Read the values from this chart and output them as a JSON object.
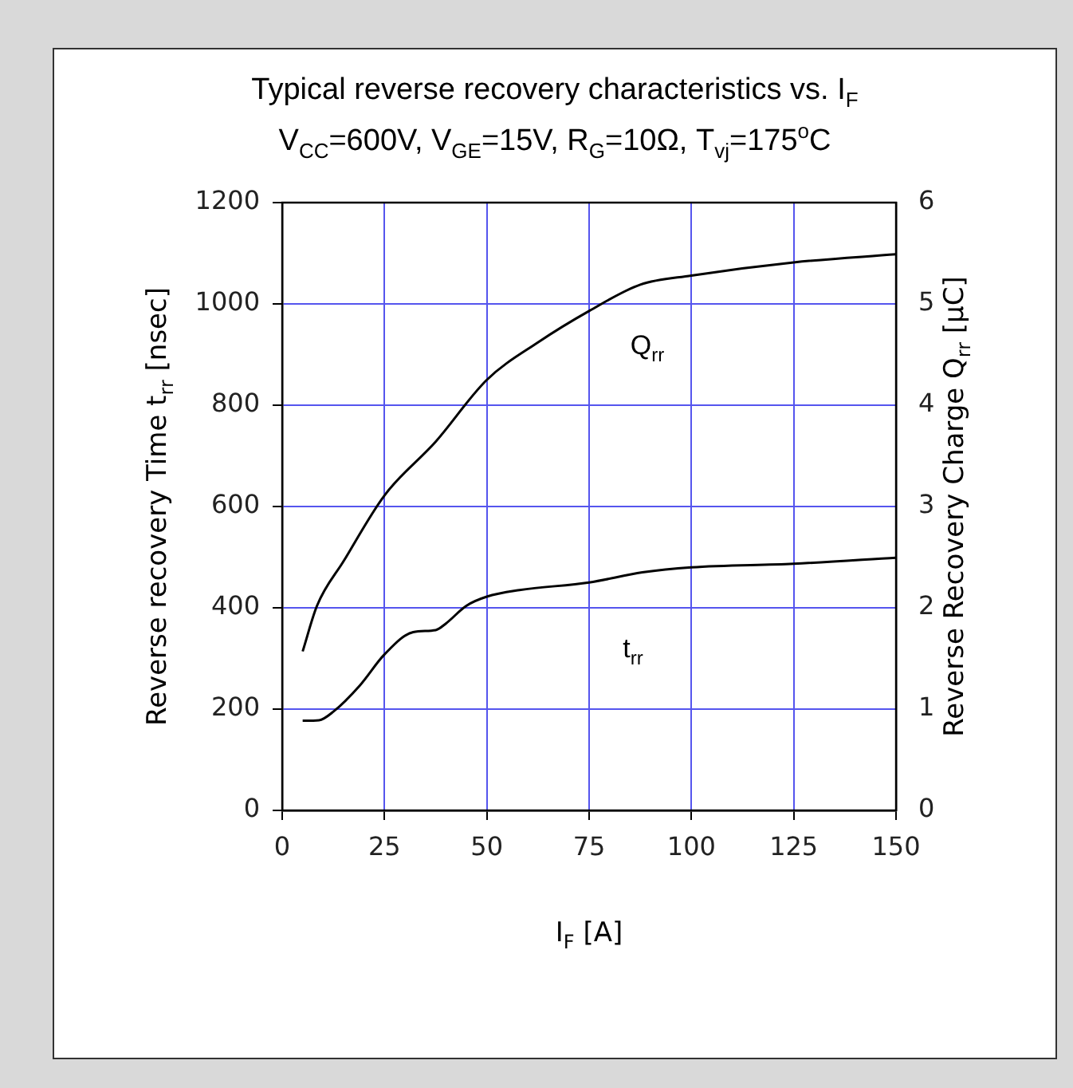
{
  "chart_data": {
    "type": "line",
    "title": "Typical reverse recovery characteristics vs. I$_{F}$",
    "subtitle": "V$_{CC}$=600V, V$_{GE}$=15V, R$_{G}$=10Ω, T$_{vj}$=175$^{o}$C",
    "xlabel": "I$_{F}$ [A]",
    "ylabel": "Reverse recovery Time t$_{rr}$ [nsec]",
    "y2label": "Reverse Recovery Charge Q$_{rr}$ [μC]",
    "series": [
      {
        "color": "#000000",
        "axis": "y",
        "x": [
          5,
          9,
          12.5,
          19,
          25,
          32,
          37.5,
          40,
          45,
          50,
          58,
          75,
          88,
          100,
          125,
          150
        ],
        "values": [
          177,
          178,
          195,
          247,
          308,
          352,
          356,
          369,
          404,
          422,
          435,
          450,
          470,
          480,
          487,
          499
        ]
      },
      {
        "color": "#000000",
        "axis": "y2",
        "x": [
          5,
          8.5,
          15,
          25,
          37.5,
          50,
          62.5,
          75,
          87.5,
          100,
          125,
          150
        ],
        "values": [
          1.57,
          2.02,
          2.46,
          3.11,
          3.64,
          4.25,
          4.62,
          4.93,
          5.19,
          5.28,
          5.41,
          5.49
        ]
      }
    ],
    "annotations": [
      "Q$_{rr}$",
      "t$_{rr}$"
    ],
    "xlim": [
      0,
      150
    ],
    "xticks": [
      0,
      25,
      50,
      75,
      100,
      125,
      150
    ],
    "ylim": [
      0,
      1200
    ],
    "yticks": [
      0,
      200,
      400,
      600,
      800,
      1000,
      1200
    ],
    "y2lim": [
      0,
      6
    ],
    "y2ticks": [
      0,
      1,
      2,
      3,
      4,
      5,
      6
    ],
    "grid": true,
    "legend": false,
    "marker": "none",
    "line_style": "solid"
  }
}
